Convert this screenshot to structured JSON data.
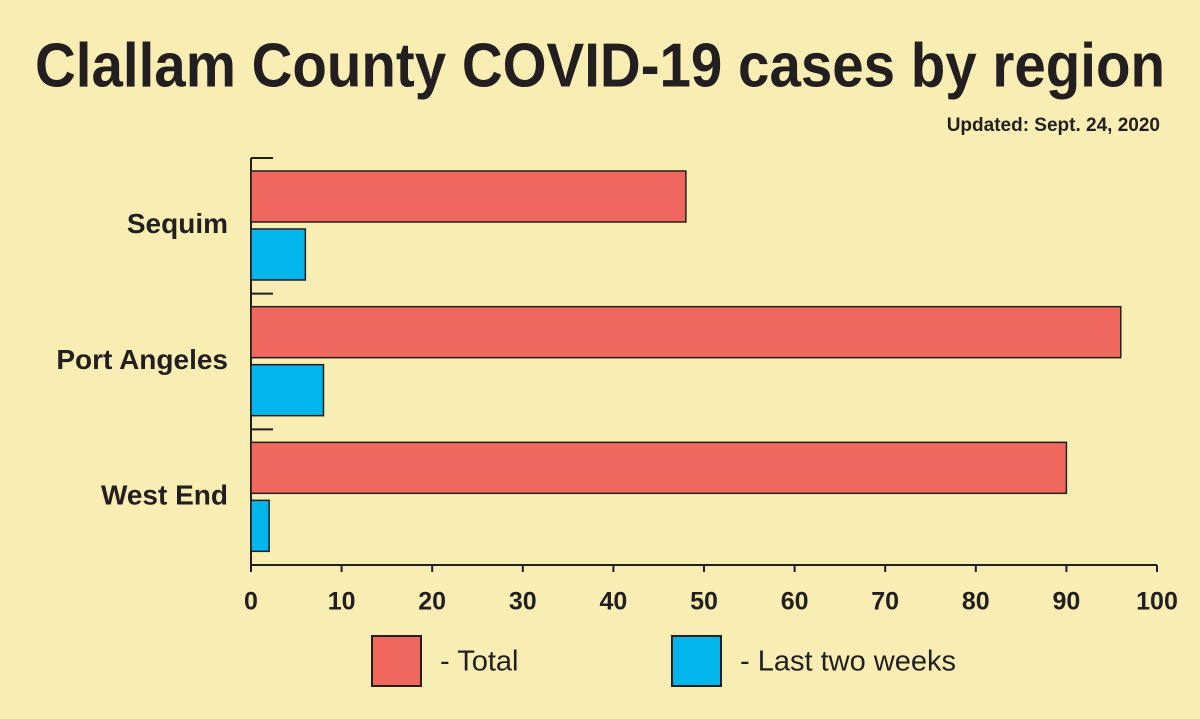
{
  "chart_data": {
    "type": "hbar",
    "title": "Clallam County COVID-19 cases by region",
    "subtitle": "Updated: Sept. 24, 2020",
    "categories": [
      "Sequim",
      "Port Angeles",
      "West End"
    ],
    "series": [
      {
        "name": "- Total",
        "color": "#f0675e",
        "values": [
          48,
          96,
          90
        ]
      },
      {
        "name": "- Last two weeks",
        "color": "#00b6ec",
        "values": [
          6,
          8,
          2
        ]
      }
    ],
    "xlim": [
      0,
      100
    ],
    "xticks": [
      0,
      10,
      20,
      30,
      40,
      50,
      60,
      70,
      80,
      90,
      100
    ]
  }
}
